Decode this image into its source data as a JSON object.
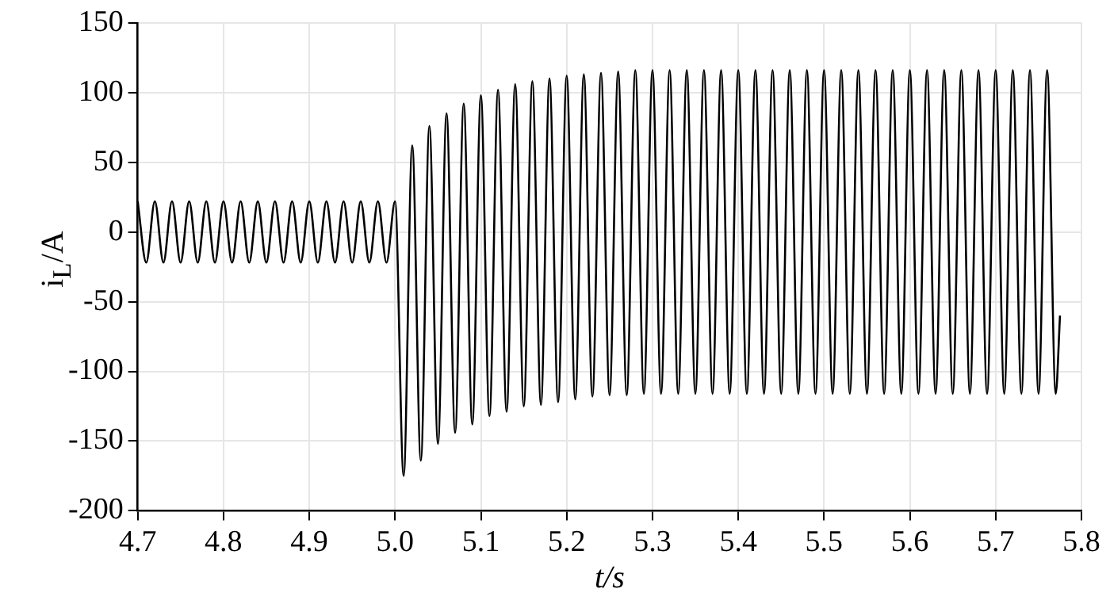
{
  "chart_data": {
    "type": "line",
    "xlabel": "t/s",
    "ylabel": "i$_{L}$/A",
    "xlim": [
      4.7,
      5.8
    ],
    "xticks": [
      4.7,
      4.8,
      4.9,
      {
        "value": 5.0,
        "label": "5.0"
      },
      5.1,
      5.2,
      5.3,
      5.4,
      5.5,
      5.6,
      5.7,
      5.8
    ],
    "ylim": [
      -200,
      150
    ],
    "yticks": [
      -200,
      -150,
      -100,
      -50,
      0,
      50,
      100,
      150
    ],
    "grid": true,
    "legend": false,
    "marker": "none",
    "line_style": "solid",
    "x": [
      4.7,
      4.71,
      4.72,
      4.73,
      4.74,
      4.75,
      4.76,
      4.77,
      4.78,
      4.79,
      4.8,
      4.81,
      4.82,
      4.83,
      4.84,
      4.85,
      4.86,
      4.87,
      4.88,
      4.89,
      4.9,
      4.91,
      4.92,
      4.93,
      4.94,
      4.95,
      4.96,
      4.97,
      4.98,
      4.99,
      5.0,
      5.01,
      5.02,
      5.03,
      5.04,
      5.05,
      5.06,
      5.07,
      5.08,
      5.09,
      5.1,
      5.11,
      5.12,
      5.13,
      5.14,
      5.15,
      5.16,
      5.17,
      5.18,
      5.19,
      5.2,
      5.21,
      5.22,
      5.23,
      5.24,
      5.25,
      5.26,
      5.27,
      5.28,
      5.29,
      5.3,
      5.31,
      5.32,
      5.33,
      5.34,
      5.35,
      5.36,
      5.37,
      5.38,
      5.39,
      5.4,
      5.41,
      5.42,
      5.43,
      5.44,
      5.45,
      5.46,
      5.47,
      5.48,
      5.49,
      5.5,
      5.51,
      5.52,
      5.53,
      5.54,
      5.55,
      5.56,
      5.57,
      5.58,
      5.59,
      5.6,
      5.61,
      5.62,
      5.63,
      5.64,
      5.65,
      5.66,
      5.67,
      5.68,
      5.69,
      5.7,
      5.71,
      5.72,
      5.73,
      5.74,
      5.75,
      5.76,
      5.77,
      5.775
    ],
    "series": [
      {
        "color": "#000000",
        "values": [
          22,
          -22,
          22,
          -22,
          22,
          -22,
          22,
          -22,
          22,
          -22,
          22,
          -22,
          22,
          -22,
          22,
          -22,
          22,
          -22,
          22,
          -22,
          22,
          -22,
          22,
          -22,
          22,
          -22,
          22,
          -22,
          22,
          -22,
          22,
          -175,
          62,
          -164,
          76,
          -152,
          85,
          -144,
          92,
          -138,
          98,
          -132,
          102,
          -129,
          106,
          -125,
          108,
          -124,
          110,
          -122,
          112,
          -120,
          113,
          -118,
          114,
          -117,
          115,
          -117,
          116,
          -116,
          116,
          -116,
          116,
          -116,
          116,
          -116,
          116,
          -116,
          116,
          -116,
          116,
          -116,
          116,
          -116,
          116,
          -116,
          116,
          -116,
          116,
          -116,
          116,
          -116,
          116,
          -116,
          116,
          -116,
          116,
          -116,
          116,
          -116,
          116,
          -116,
          116,
          -116,
          116,
          -116,
          116,
          -116,
          116,
          -116,
          116,
          -116,
          116,
          -116,
          116,
          -116,
          116,
          -116,
          -60
        ]
      }
    ]
  }
}
